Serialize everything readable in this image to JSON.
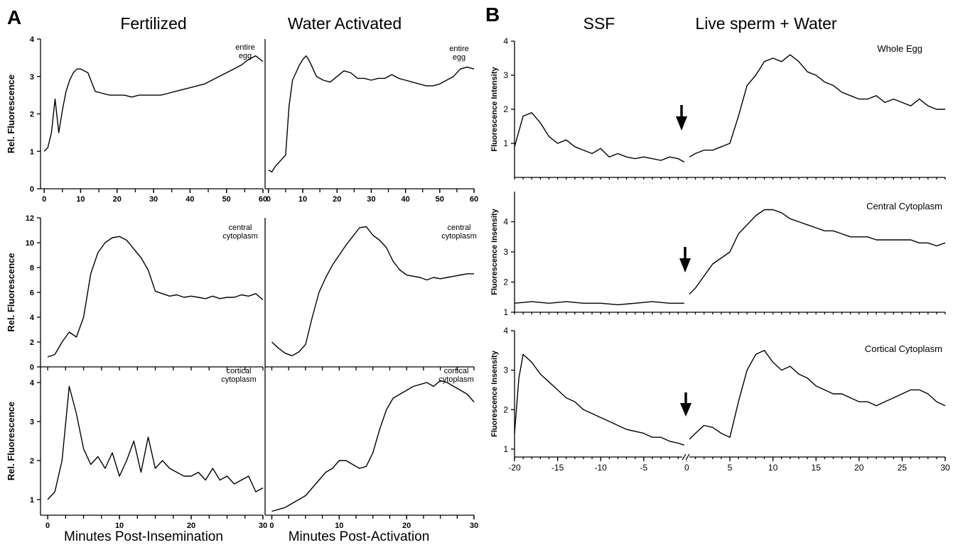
{
  "figure": {
    "panel_a_label": "A",
    "panel_b_label": "B",
    "a_left_title": "Fertilized",
    "a_right_title": "Water Activated",
    "b_left_title": "SSF",
    "b_right_title": "Live sperm + Water",
    "a_left_xlabel": "Minutes Post-Insemination",
    "a_right_xlabel": "Minutes Post-Activation"
  },
  "chart_data": [
    {
      "id": "a1",
      "type": "line",
      "ylabel": "Rel. Fluorescence",
      "annotation": "entire\negg",
      "xlim": [
        -1,
        60
      ],
      "ylim": [
        0,
        4
      ],
      "xticks": [
        0,
        10,
        20,
        30,
        40,
        50,
        60
      ],
      "yticks": [
        0,
        1,
        2,
        3,
        4
      ],
      "series": [
        {
          "x": [
            0,
            1,
            2,
            3,
            4,
            5,
            6,
            7,
            8,
            9,
            10,
            12,
            14,
            16,
            18,
            20,
            22,
            24,
            26,
            28,
            30,
            32,
            34,
            36,
            38,
            40,
            42,
            44,
            46,
            48,
            50,
            52,
            54,
            56,
            58,
            60
          ],
          "y": [
            1.0,
            1.1,
            1.5,
            2.4,
            1.5,
            2.1,
            2.6,
            2.9,
            3.1,
            3.2,
            3.2,
            3.1,
            2.6,
            2.55,
            2.5,
            2.5,
            2.5,
            2.45,
            2.5,
            2.5,
            2.5,
            2.5,
            2.55,
            2.6,
            2.65,
            2.7,
            2.75,
            2.8,
            2.9,
            3.0,
            3.1,
            3.2,
            3.3,
            3.45,
            3.55,
            3.4
          ]
        }
      ]
    },
    {
      "id": "a2",
      "type": "line",
      "ylabel": "",
      "annotation": "entire\negg",
      "xlim": [
        -1,
        60
      ],
      "ylim": [
        0,
        4
      ],
      "xticks": [
        0,
        10,
        20,
        30,
        40,
        50,
        60
      ],
      "yticks": [],
      "series": [
        {
          "x": [
            0,
            1,
            2,
            3,
            4,
            5,
            6,
            7,
            8,
            9,
            10,
            11,
            12,
            14,
            16,
            18,
            20,
            22,
            24,
            26,
            28,
            30,
            32,
            34,
            36,
            38,
            40,
            42,
            44,
            46,
            48,
            50,
            52,
            54,
            56,
            58,
            60
          ],
          "y": [
            0.5,
            0.45,
            0.6,
            0.7,
            0.8,
            0.9,
            2.2,
            2.9,
            3.1,
            3.3,
            3.45,
            3.55,
            3.4,
            3.0,
            2.9,
            2.85,
            3.0,
            3.15,
            3.1,
            2.95,
            2.95,
            2.9,
            2.95,
            2.95,
            3.05,
            2.95,
            2.9,
            2.85,
            2.8,
            2.75,
            2.75,
            2.8,
            2.9,
            3.0,
            3.2,
            3.25,
            3.2
          ]
        }
      ]
    },
    {
      "id": "a3",
      "type": "line",
      "ylabel": "Rel. Fluorescence",
      "annotation": "central\ncytoplasm",
      "xlim": [
        -1,
        30
      ],
      "ylim": [
        0,
        12
      ],
      "xticks": [],
      "yticks": [
        0,
        2,
        4,
        6,
        8,
        10,
        12
      ],
      "series": [
        {
          "x": [
            0,
            1,
            2,
            3,
            4,
            5,
            6,
            7,
            8,
            9,
            10,
            11,
            12,
            13,
            14,
            15,
            16,
            17,
            18,
            19,
            20,
            21,
            22,
            23,
            24,
            25,
            26,
            27,
            28,
            29,
            30
          ],
          "y": [
            0.8,
            1.0,
            2.0,
            2.8,
            2.4,
            4.0,
            7.5,
            9.2,
            10.0,
            10.4,
            10.5,
            10.2,
            9.5,
            8.8,
            7.8,
            6.1,
            5.9,
            5.7,
            5.8,
            5.6,
            5.7,
            5.6,
            5.5,
            5.7,
            5.5,
            5.6,
            5.6,
            5.8,
            5.7,
            5.9,
            5.4
          ]
        }
      ]
    },
    {
      "id": "a4",
      "type": "line",
      "ylabel": "",
      "annotation": "central\ncytoplasm",
      "xlim": [
        -1,
        30
      ],
      "ylim": [
        0,
        12
      ],
      "xticks": [],
      "yticks": [],
      "series": [
        {
          "x": [
            0,
            1,
            2,
            3,
            4,
            5,
            6,
            7,
            8,
            9,
            10,
            11,
            12,
            13,
            14,
            15,
            16,
            17,
            18,
            19,
            20,
            21,
            22,
            23,
            24,
            25,
            26,
            27,
            28,
            29,
            30
          ],
          "y": [
            2.0,
            1.5,
            1.1,
            0.9,
            1.2,
            1.8,
            4.0,
            6.0,
            7.2,
            8.2,
            9.0,
            9.8,
            10.5,
            11.2,
            11.3,
            10.6,
            10.2,
            9.6,
            8.5,
            7.8,
            7.4,
            7.3,
            7.2,
            7.0,
            7.2,
            7.1,
            7.2,
            7.3,
            7.4,
            7.5,
            7.5
          ]
        }
      ]
    },
    {
      "id": "a5",
      "type": "line",
      "ylabel": "Rel. Fluorescence",
      "annotation": "cortical\ncytoplasm",
      "xlim": [
        -1,
        30
      ],
      "ylim": [
        0.6,
        4.4
      ],
      "xticks": [
        0,
        10,
        20,
        30
      ],
      "yticks": [
        1,
        2,
        3,
        4
      ],
      "series": [
        {
          "x": [
            0,
            1,
            2,
            3,
            4,
            5,
            6,
            7,
            8,
            9,
            10,
            11,
            12,
            13,
            14,
            15,
            16,
            17,
            18,
            19,
            20,
            21,
            22,
            23,
            24,
            25,
            26,
            27,
            28,
            29,
            30
          ],
          "y": [
            1.0,
            1.2,
            2.0,
            3.9,
            3.2,
            2.3,
            1.9,
            2.1,
            1.8,
            2.2,
            1.6,
            2.0,
            2.5,
            1.7,
            2.6,
            1.8,
            2.0,
            1.8,
            1.7,
            1.6,
            1.6,
            1.7,
            1.5,
            1.8,
            1.5,
            1.6,
            1.4,
            1.5,
            1.6,
            1.2,
            1.3
          ]
        }
      ]
    },
    {
      "id": "a6",
      "type": "line",
      "ylabel": "",
      "annotation": "cortical\ncytoplasm",
      "xlim": [
        -1,
        30
      ],
      "ylim": [
        0.6,
        4.4
      ],
      "xticks": [
        0,
        10,
        20,
        30
      ],
      "yticks": [],
      "series": [
        {
          "x": [
            0,
            1,
            2,
            3,
            4,
            5,
            6,
            7,
            8,
            9,
            10,
            11,
            12,
            13,
            14,
            15,
            16,
            17,
            18,
            19,
            20,
            21,
            22,
            23,
            24,
            25,
            26,
            27,
            28,
            29,
            30
          ],
          "y": [
            0.7,
            0.75,
            0.8,
            0.9,
            1.0,
            1.1,
            1.3,
            1.5,
            1.7,
            1.8,
            2.0,
            2.0,
            1.9,
            1.8,
            1.85,
            2.2,
            2.8,
            3.3,
            3.6,
            3.7,
            3.8,
            3.9,
            3.95,
            4.0,
            3.9,
            4.05,
            4.0,
            3.9,
            3.8,
            3.7,
            3.5
          ]
        }
      ]
    },
    {
      "id": "b1",
      "type": "line",
      "ylabel": "Fluorescence Intensity",
      "annotation": "Whole Egg",
      "xlim": [
        -20,
        30
      ],
      "ylim": [
        0,
        4
      ],
      "xticks": [],
      "yticks": [
        1,
        2,
        3,
        4
      ],
      "series": [
        {
          "x": [
            -20,
            -19,
            -18,
            -17,
            -16,
            -15,
            -14,
            -13,
            -12,
            -11,
            -10,
            -9,
            -8,
            -7,
            -6,
            -5,
            -4,
            -3,
            -2,
            -1,
            -0.3
          ],
          "y": [
            0.9,
            1.8,
            1.9,
            1.6,
            1.2,
            1.0,
            1.1,
            0.9,
            0.8,
            0.7,
            0.85,
            0.6,
            0.7,
            0.6,
            0.55,
            0.6,
            0.55,
            0.5,
            0.6,
            0.55,
            0.45
          ]
        },
        {
          "x": [
            0.3,
            1,
            2,
            3,
            4,
            5,
            6,
            7,
            8,
            9,
            10,
            11,
            12,
            13,
            14,
            15,
            16,
            17,
            18,
            19,
            20,
            21,
            22,
            23,
            24,
            25,
            26,
            27,
            28,
            29,
            30
          ],
          "y": [
            0.6,
            0.7,
            0.8,
            0.8,
            0.9,
            1.0,
            1.8,
            2.7,
            3.0,
            3.4,
            3.5,
            3.4,
            3.6,
            3.4,
            3.1,
            3.0,
            2.8,
            2.7,
            2.5,
            2.4,
            2.3,
            2.3,
            2.4,
            2.2,
            2.3,
            2.2,
            2.1,
            2.3,
            2.1,
            2.0,
            2.0
          ]
        }
      ]
    },
    {
      "id": "b2",
      "type": "line",
      "ylabel": "Fluorescence Insensity",
      "annotation": "Central Cytoplasm",
      "xlim": [
        -20,
        30
      ],
      "ylim": [
        1,
        5
      ],
      "xticks": [],
      "yticks": [
        1,
        2,
        3,
        4
      ],
      "series": [
        {
          "x": [
            -20,
            -18,
            -16,
            -14,
            -12,
            -10,
            -8,
            -6,
            -4,
            -2,
            -0.3
          ],
          "y": [
            1.3,
            1.35,
            1.3,
            1.35,
            1.3,
            1.3,
            1.25,
            1.3,
            1.35,
            1.3,
            1.3
          ]
        },
        {
          "x": [
            0.3,
            1,
            2,
            3,
            4,
            5,
            6,
            7,
            8,
            9,
            10,
            11,
            12,
            13,
            14,
            15,
            16,
            17,
            18,
            19,
            20,
            21,
            22,
            23,
            24,
            25,
            26,
            27,
            28,
            29,
            30
          ],
          "y": [
            1.6,
            1.8,
            2.2,
            2.6,
            2.8,
            3.0,
            3.6,
            3.9,
            4.2,
            4.4,
            4.4,
            4.3,
            4.1,
            4.0,
            3.9,
            3.8,
            3.7,
            3.7,
            3.6,
            3.5,
            3.5,
            3.5,
            3.4,
            3.4,
            3.4,
            3.4,
            3.4,
            3.3,
            3.3,
            3.2,
            3.3
          ]
        }
      ]
    },
    {
      "id": "b3",
      "type": "line",
      "ylabel": "Fluorescence Insensity",
      "annotation": "Cortical Cytoplasm",
      "xlim": [
        -20,
        30
      ],
      "ylim": [
        0.8,
        4
      ],
      "xticks": [
        -20,
        -15,
        -10,
        -5,
        0,
        5,
        10,
        15,
        20,
        25,
        30
      ],
      "yticks": [
        1,
        2,
        3,
        4
      ],
      "series": [
        {
          "x": [
            -20,
            -19.5,
            -19,
            -18,
            -17,
            -16,
            -15,
            -14,
            -13,
            -12,
            -11,
            -10,
            -9,
            -8,
            -7,
            -6,
            -5,
            -4,
            -3,
            -2,
            -1,
            -0.3
          ],
          "y": [
            1.4,
            2.8,
            3.4,
            3.2,
            2.9,
            2.7,
            2.5,
            2.3,
            2.2,
            2.0,
            1.9,
            1.8,
            1.7,
            1.6,
            1.5,
            1.45,
            1.4,
            1.3,
            1.3,
            1.2,
            1.15,
            1.1
          ]
        },
        {
          "x": [
            0.3,
            1,
            2,
            3,
            4,
            5,
            6,
            7,
            8,
            9,
            10,
            11,
            12,
            13,
            14,
            15,
            16,
            17,
            18,
            19,
            20,
            21,
            22,
            23,
            24,
            25,
            26,
            27,
            28,
            29,
            30
          ],
          "y": [
            1.25,
            1.4,
            1.6,
            1.55,
            1.4,
            1.3,
            2.2,
            3.0,
            3.4,
            3.5,
            3.2,
            3.0,
            3.1,
            2.9,
            2.8,
            2.6,
            2.5,
            2.4,
            2.4,
            2.3,
            2.2,
            2.2,
            2.1,
            2.2,
            2.3,
            2.4,
            2.5,
            2.5,
            2.4,
            2.2,
            2.1
          ]
        }
      ]
    }
  ]
}
